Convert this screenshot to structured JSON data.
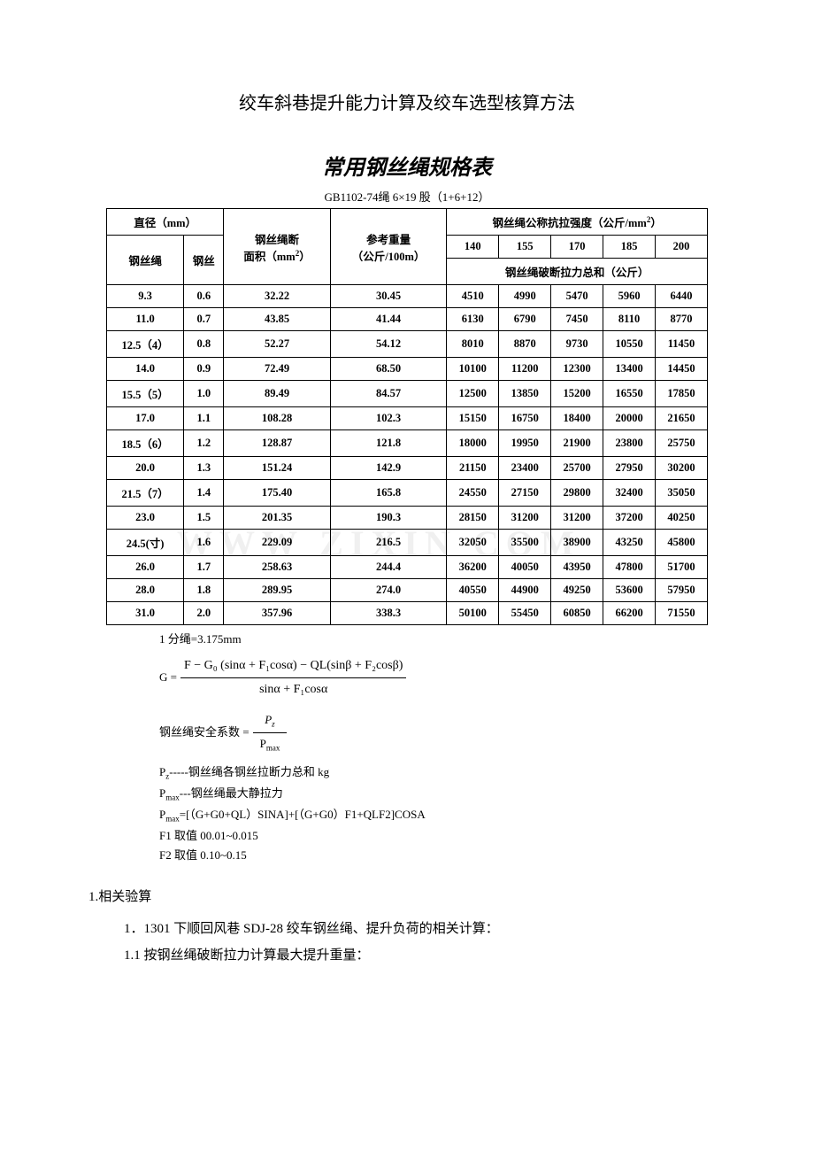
{
  "titles": {
    "main": "绞车斜巷提升能力计算及绞车选型核算方法",
    "sub": "常用钢丝绳规格表",
    "table_std": "GB1102-74绳 6×19 股（1+6+12）"
  },
  "table": {
    "headers": {
      "diameter_group": "直径（mm）",
      "rope": "钢丝绳",
      "wire": "钢丝",
      "break_area": "钢丝绳断",
      "area_unit": "面积（mm²）",
      "ref_weight": "参考重量",
      "weight_unit": "（公斤/100m）",
      "strength_group": "钢丝绳公称抗拉强度（公斤/mm²）",
      "strength_cols": [
        "140",
        "155",
        "170",
        "185",
        "200"
      ],
      "break_sum": "钢丝绳破断拉力总和（公斤）"
    },
    "rows": [
      {
        "d": "9.3",
        "w": "0.6",
        "a": "32.22",
        "wt": "30.45",
        "v": [
          "4510",
          "4990",
          "5470",
          "5960",
          "6440"
        ]
      },
      {
        "d": "11.0",
        "w": "0.7",
        "a": "43.85",
        "wt": "41.44",
        "v": [
          "6130",
          "6790",
          "7450",
          "8110",
          "8770"
        ]
      },
      {
        "d": "12.5（4）",
        "w": "0.8",
        "a": "52.27",
        "wt": "54.12",
        "v": [
          "8010",
          "8870",
          "9730",
          "10550",
          "11450"
        ]
      },
      {
        "d": "14.0",
        "w": "0.9",
        "a": "72.49",
        "wt": "68.50",
        "v": [
          "10100",
          "11200",
          "12300",
          "13400",
          "14450"
        ]
      },
      {
        "d": "15.5（5）",
        "w": "1.0",
        "a": "89.49",
        "wt": "84.57",
        "v": [
          "12500",
          "13850",
          "15200",
          "16550",
          "17850"
        ]
      },
      {
        "d": "17.0",
        "w": "1.1",
        "a": "108.28",
        "wt": "102.3",
        "v": [
          "15150",
          "16750",
          "18400",
          "20000",
          "21650"
        ]
      },
      {
        "d": "18.5（6）",
        "w": "1.2",
        "a": "128.87",
        "wt": "121.8",
        "v": [
          "18000",
          "19950",
          "21900",
          "23800",
          "25750"
        ]
      },
      {
        "d": "20.0",
        "w": "1.3",
        "a": "151.24",
        "wt": "142.9",
        "v": [
          "21150",
          "23400",
          "25700",
          "27950",
          "30200"
        ]
      },
      {
        "d": "21.5（7）",
        "w": "1.4",
        "a": "175.40",
        "wt": "165.8",
        "v": [
          "24550",
          "27150",
          "29800",
          "32400",
          "35050"
        ]
      },
      {
        "d": "23.0",
        "w": "1.5",
        "a": "201.35",
        "wt": "190.3",
        "v": [
          "28150",
          "31200",
          "31200",
          "37200",
          "40250"
        ]
      },
      {
        "d": "24.5(寸)",
        "w": "1.6",
        "a": "229.09",
        "wt": "216.5",
        "v": [
          "32050",
          "35500",
          "38900",
          "43250",
          "45800"
        ]
      },
      {
        "d": "26.0",
        "w": "1.7",
        "a": "258.63",
        "wt": "244.4",
        "v": [
          "36200",
          "40050",
          "43950",
          "47800",
          "51700"
        ]
      },
      {
        "d": "28.0",
        "w": "1.8",
        "a": "289.95",
        "wt": "274.0",
        "v": [
          "40550",
          "44900",
          "49250",
          "53600",
          "57950"
        ]
      },
      {
        "d": "31.0",
        "w": "2.0",
        "a": "357.96",
        "wt": "338.3",
        "v": [
          "50100",
          "55450",
          "60850",
          "66200",
          "71550"
        ]
      }
    ]
  },
  "notes": {
    "unit_note": "1 分绳=3.175mm",
    "formula_g_lhs": "G =",
    "formula_g_num": "F − G₀ (sinα + F₁cosα) − QL(sinβ + F₂cosβ)",
    "formula_g_den": "sinα + F₁cosα",
    "safety_label": "钢丝绳安全系数 =",
    "safety_num": "Pz",
    "safety_den": "Pmax",
    "pz_def": "Pz-----钢丝绳各钢丝拉断力总和 kg",
    "pmax_def": "Pmax---钢丝绳最大静拉力",
    "pmax_formula": "Pmax=[（G+G0+QL）SINA]+[（G+G0）F1+QLF2]COSA",
    "f1_note": "F1 取值 00.01~0.015",
    "f2_note": "F2 取值 0.10~0.15"
  },
  "section": {
    "heading": "1.相关验算",
    "line1": "1．1301 下顺回风巷 SDJ-28 绞车钢丝绳、提升负荷的相关计算：",
    "line2": "1.1 按钢丝绳破断拉力计算最大提升重量："
  },
  "colors": {
    "text": "#000000",
    "background": "#ffffff",
    "border": "#000000"
  }
}
